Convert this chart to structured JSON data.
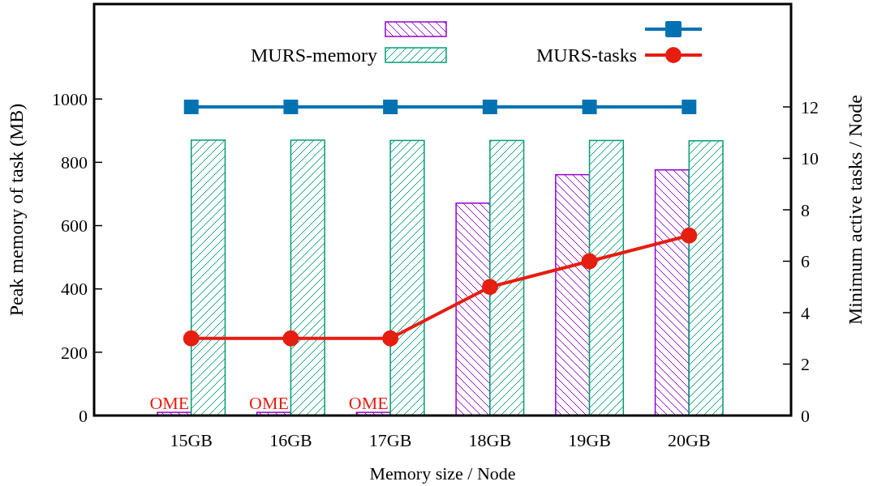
{
  "chart_data": {
    "type": "bar",
    "categories": [
      "15GB",
      "16GB",
      "17GB",
      "18GB",
      "19GB",
      "20GB"
    ],
    "xlabel": "Memory size / Node",
    "ylabel": "Peak memory of task (MB)",
    "y2label": "Minimum active tasks / Node",
    "series": [
      {
        "color": "#9400d3",
        "values": [
          10,
          10,
          10,
          671,
          761,
          776
        ]
      },
      {
        "name": "MURS-memory",
        "color": "#009e73",
        "values": [
          870,
          870,
          869,
          869,
          869,
          868
        ]
      },
      {
        "type": "line",
        "axis": "y2",
        "marker": "square",
        "color": "#0072b2",
        "values": [
          12,
          12,
          12,
          12,
          12,
          12
        ]
      },
      {
        "type": "line",
        "name": "MURS-tasks",
        "axis": "y2",
        "marker": "circle",
        "color": "#e51e10",
        "values": [
          3,
          3,
          3,
          5,
          6,
          7
        ]
      }
    ],
    "annotations": [
      {
        "text": "OME",
        "x": "15GB",
        "y": 10
      },
      {
        "text": "OME",
        "x": "16GB",
        "y": 10
      },
      {
        "text": "OME",
        "x": "17GB",
        "y": 10
      }
    ],
    "ylim": [
      0,
      1300
    ],
    "yticks": [
      0,
      200,
      400,
      600,
      800,
      1000
    ],
    "y2lim": [
      0,
      16
    ],
    "y2ticks": [
      0,
      2,
      4,
      6,
      8,
      10,
      12
    ],
    "legend": "top",
    "grid": false
  }
}
